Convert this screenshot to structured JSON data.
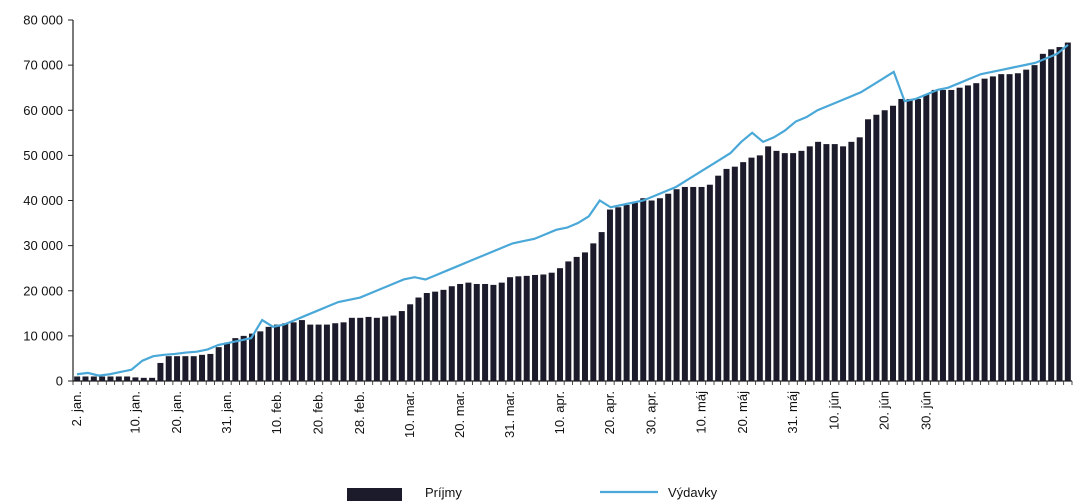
{
  "chart_data": {
    "type": "bar+line",
    "ylim": [
      0,
      80000
    ],
    "yticks": [
      "0",
      "10 000",
      "20 000",
      "30 000",
      "40 000",
      "50 000",
      "60 000",
      "70 000",
      "80 000"
    ],
    "xtick_labels": [
      "2. jan.",
      "10. jan.",
      "20. jan.",
      "31. jan.",
      "10. feb.",
      "20. feb.",
      "28. feb.",
      "10. mar.",
      "20. mar.",
      "31. mar.",
      "10. apr.",
      "20. apr.",
      "30. apr.",
      "10. máj",
      "20. máj",
      "31. máj",
      "10. jún",
      "20. jún",
      "30. jún"
    ],
    "xtick_index": [
      0,
      7,
      12,
      18,
      24,
      29,
      34,
      40,
      46,
      52,
      58,
      64,
      69,
      75,
      80,
      86,
      91,
      97,
      102
    ],
    "series": [
      {
        "name": "Príjmy",
        "type": "bar",
        "color": "#1b1b2b",
        "values": [
          1000,
          1000,
          1000,
          1000,
          1000,
          1000,
          1000,
          800,
          700,
          700,
          4000,
          5500,
          5500,
          5500,
          5500,
          5800,
          6000,
          7500,
          8500,
          9500,
          10000,
          10500,
          11000,
          12000,
          12500,
          12800,
          13000,
          13500,
          12500,
          12500,
          12500,
          12800,
          13000,
          14000,
          14000,
          14200,
          14000,
          14300,
          14500,
          15500,
          17000,
          18500,
          19500,
          19800,
          20200,
          21000,
          21500,
          21800,
          21500,
          21500,
          21300,
          21800,
          23000,
          23200,
          23300,
          23500,
          23600,
          24000,
          25000,
          26500,
          27500,
          28500,
          30500,
          33000,
          38000,
          38500,
          39000,
          39500,
          40500,
          40000,
          40500,
          41500,
          42500,
          43000,
          43000,
          43000,
          43500,
          45500,
          47000,
          47500,
          48500,
          49500,
          50000,
          52000,
          51000,
          50500,
          50500,
          51000,
          52000,
          53000,
          52500,
          52500,
          52000,
          53000,
          54000,
          58000,
          59000,
          60000,
          61000,
          62500,
          62500,
          62500,
          63500,
          64500,
          64500,
          64500,
          65000,
          65500,
          66000,
          67000,
          67500,
          68000,
          68000,
          68200,
          69000,
          70000,
          72500,
          73500,
          74000,
          75000
        ]
      },
      {
        "name": "Výdavky",
        "type": "line",
        "color": "#4aa8d8",
        "values": [
          1500,
          1800,
          1200,
          1500,
          2000,
          2500,
          4500,
          5500,
          5800,
          6000,
          6300,
          6500,
          7000,
          8000,
          8500,
          9000,
          9500,
          13500,
          12000,
          12500,
          13500,
          14500,
          15500,
          16500,
          17500,
          18000,
          18500,
          19500,
          20500,
          21500,
          22500,
          23000,
          22500,
          23500,
          24500,
          25500,
          26500,
          27500,
          28500,
          29500,
          30500,
          31000,
          31500,
          32500,
          33500,
          34000,
          35000,
          36500,
          40000,
          38500,
          39000,
          39500,
          40000,
          41000,
          42000,
          43000,
          44500,
          46000,
          47500,
          49000,
          50500,
          53000,
          55000,
          53000,
          54000,
          55500,
          57500,
          58500,
          60000,
          61000,
          62000,
          63000,
          64000,
          65500,
          67000,
          68500,
          62000,
          62500,
          63500,
          64500,
          65000,
          66000,
          67000,
          68000,
          68500,
          69000,
          69500,
          70000,
          70500,
          71500,
          72500,
          74500
        ]
      }
    ]
  },
  "legend": {
    "bars_label": "Príjmy",
    "line_label": "Výdavky"
  }
}
